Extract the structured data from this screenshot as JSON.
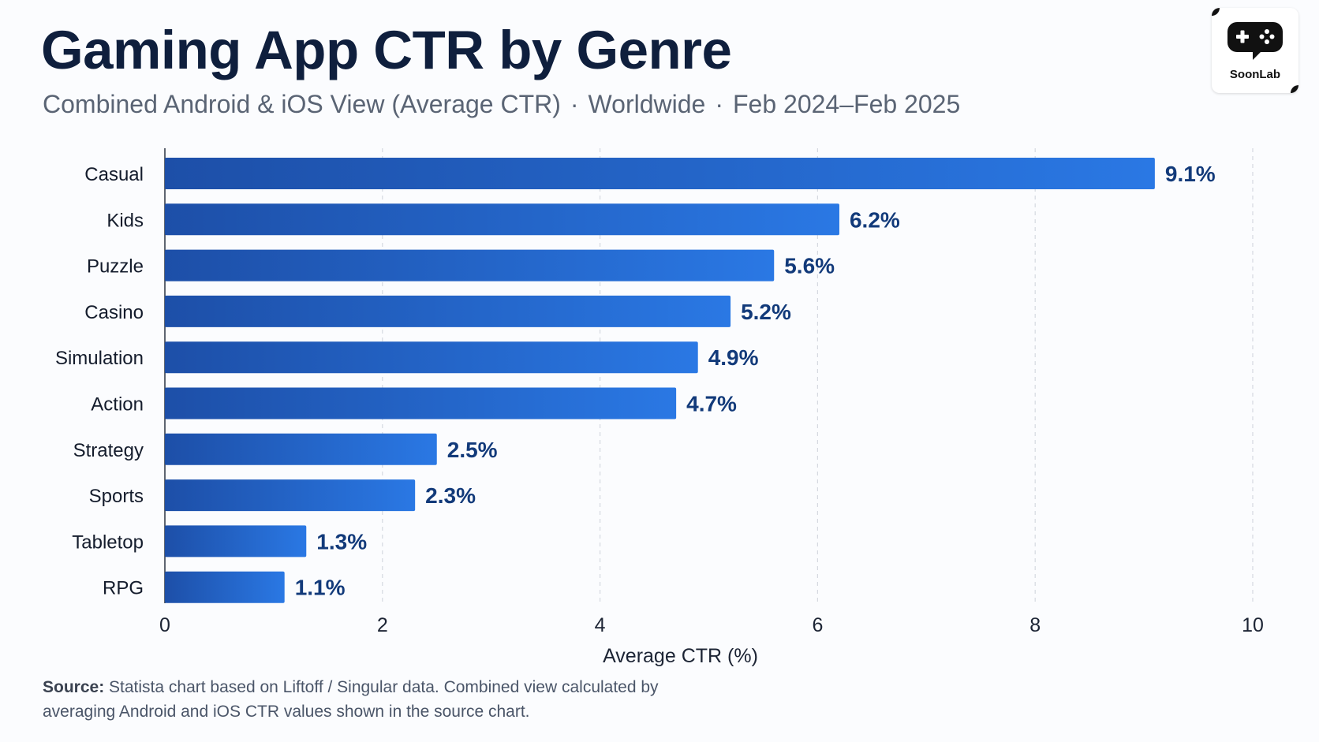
{
  "header": {
    "title": "Gaming App CTR by Genre",
    "subtitle_parts": [
      "Combined Android & iOS View (Average CTR)",
      "Worldwide",
      "Feb 2024–Feb 2025"
    ],
    "separator": "·"
  },
  "logo": {
    "text": "SoonLab",
    "icon": "gamepad-icon"
  },
  "chart_data": {
    "type": "bar",
    "orientation": "horizontal",
    "categories": [
      "Casual",
      "Kids",
      "Puzzle",
      "Casino",
      "Simulation",
      "Action",
      "Strategy",
      "Sports",
      "Tabletop",
      "RPG"
    ],
    "values": [
      9.1,
      6.2,
      5.6,
      5.2,
      4.9,
      4.7,
      2.5,
      2.3,
      1.3,
      1.1
    ],
    "data_labels": [
      "9.1%",
      "6.2%",
      "5.6%",
      "5.2%",
      "4.9%",
      "4.7%",
      "2.5%",
      "2.3%",
      "1.3%",
      "1.1%"
    ],
    "xlabel": "Average CTR (%)",
    "xlim": [
      0,
      10
    ],
    "xticks": [
      0,
      2,
      4,
      6,
      8,
      10
    ],
    "grid": "vertical dashed",
    "colors": {
      "bar_start": "#1d4fa8",
      "bar_end": "#2a78e4",
      "label": "#123a7a"
    }
  },
  "source": {
    "label": "Source:",
    "text": "Statista chart based on Liftoff / Singular data. Combined view calculated by averaging Android and iOS CTR values shown in the source chart."
  }
}
